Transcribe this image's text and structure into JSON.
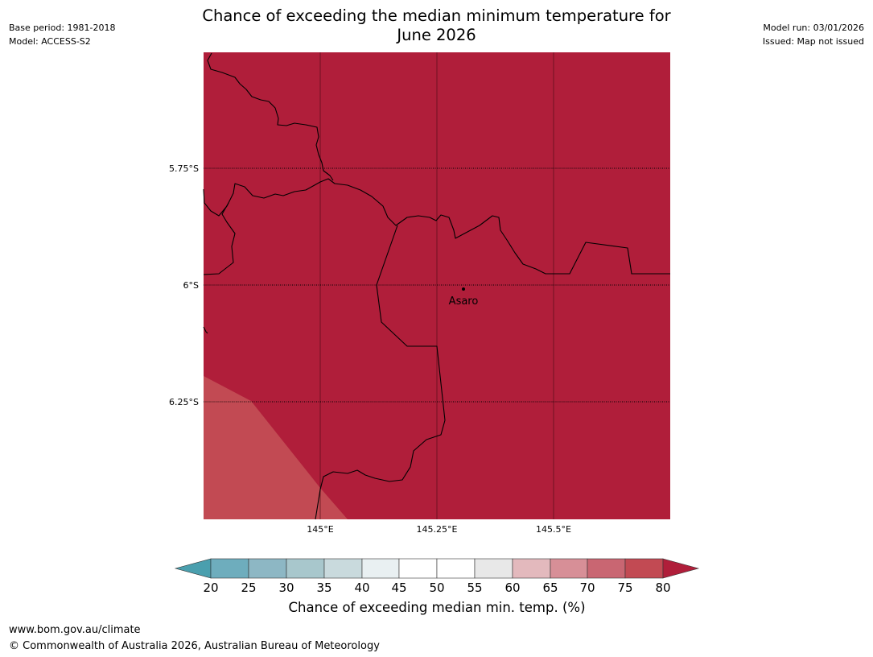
{
  "header": {
    "title_line1": "Chance of exceeding the median minimum temperature for",
    "title_line2": "June 2026",
    "base_period": "Base period: 1981-2018",
    "model": "Model: ACCESS-S2",
    "model_run": "Model run: 03/01/2026",
    "issued": "Issued: Map not issued"
  },
  "map": {
    "place_label": "Asaro",
    "lat_labels": [
      "5.75°S",
      "6°S",
      "6.25°S"
    ],
    "lon_labels": [
      "145°E",
      "145.25°E",
      "145.5°E"
    ],
    "colors": {
      "category_75_80": "#c24a53",
      "category_above_80": "#b01e3a"
    }
  },
  "colorbar": {
    "label": "Chance of exceeding median min. temp. (%)",
    "ticks": [
      "20",
      "25",
      "30",
      "35",
      "40",
      "45",
      "50",
      "55",
      "60",
      "65",
      "70",
      "75",
      "80"
    ],
    "colors": {
      "below_20": "#4a9fae",
      "c20_25": "#6eadbd",
      "c25_30": "#8db7c4",
      "c30_35": "#a8c7cc",
      "c35_40": "#c9dadd",
      "c40_45": "#e9f0f2",
      "c45_50": "#ffffff",
      "c50_55": "#ffffff",
      "c55_60": "#e8e8e8",
      "c60_65": "#e3b9bd",
      "c65_70": "#d78f97",
      "c70_75": "#c96672",
      "c75_80": "#c24a53",
      "above_80": "#b01e3a"
    }
  },
  "footer": {
    "url": "www.bom.gov.au/climate",
    "copyright": "© Commonwealth of Australia 2026, Australian Bureau of Meteorology"
  }
}
